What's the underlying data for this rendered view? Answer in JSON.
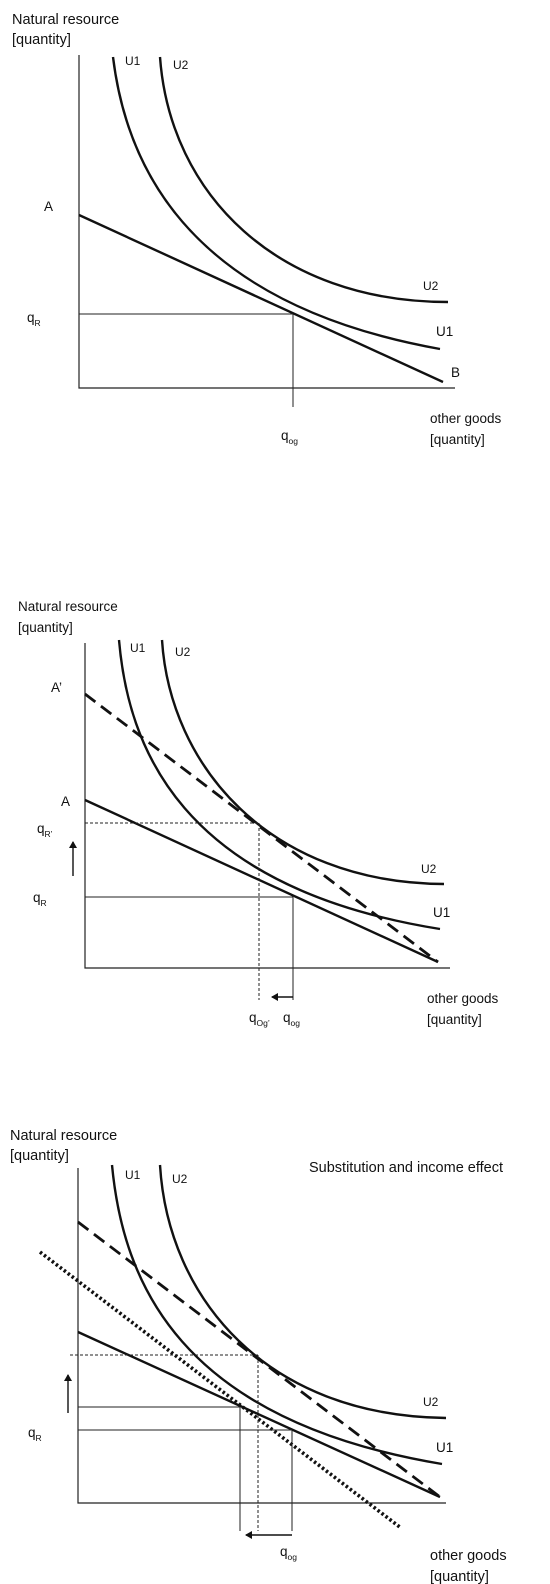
{
  "panel1": {
    "y_label_line1": "Natural resource",
    "y_label_line2": "[quantity]",
    "x_label_line1": "other goods",
    "x_label_line2": "[quantity]",
    "u1_top": "U1",
    "u2_top": "U2",
    "u2_right": "U2",
    "u1_right": "U1",
    "point_a": "A",
    "point_b": "B",
    "q_r_main": "q",
    "q_r_sub": "R",
    "q_og_main": "q",
    "q_og_sub": "og"
  },
  "panel2": {
    "y_label_line1": "Natural resource",
    "y_label_line2": "[quantity]",
    "x_label_line1": "other goods",
    "x_label_line2": "[quantity]",
    "u1_top": "U1",
    "u2_top": "U2",
    "u2_right": "U2",
    "u1_right": "U1",
    "point_a_prime": "A’",
    "point_a": "A",
    "q_r_prime_main": "q",
    "q_r_prime_sub": "R’",
    "q_r_main": "q",
    "q_r_sub": "R",
    "q_og_prime_main": "q",
    "q_og_prime_sub": "Og’",
    "q_og_main": "q",
    "q_og_sub": "og"
  },
  "panel3": {
    "y_label_line1": "Natural resource",
    "y_label_line2": "[quantity]",
    "title": "Substitution and income effect",
    "x_label_line1": "other goods",
    "x_label_line2": "[quantity]",
    "u1_top": "U1",
    "u2_top": "U2",
    "u2_right": "U2",
    "u1_right": "U1",
    "q_r_main": "q",
    "q_r_sub": "R",
    "q_og_main": "q",
    "q_og_sub": "og"
  }
}
